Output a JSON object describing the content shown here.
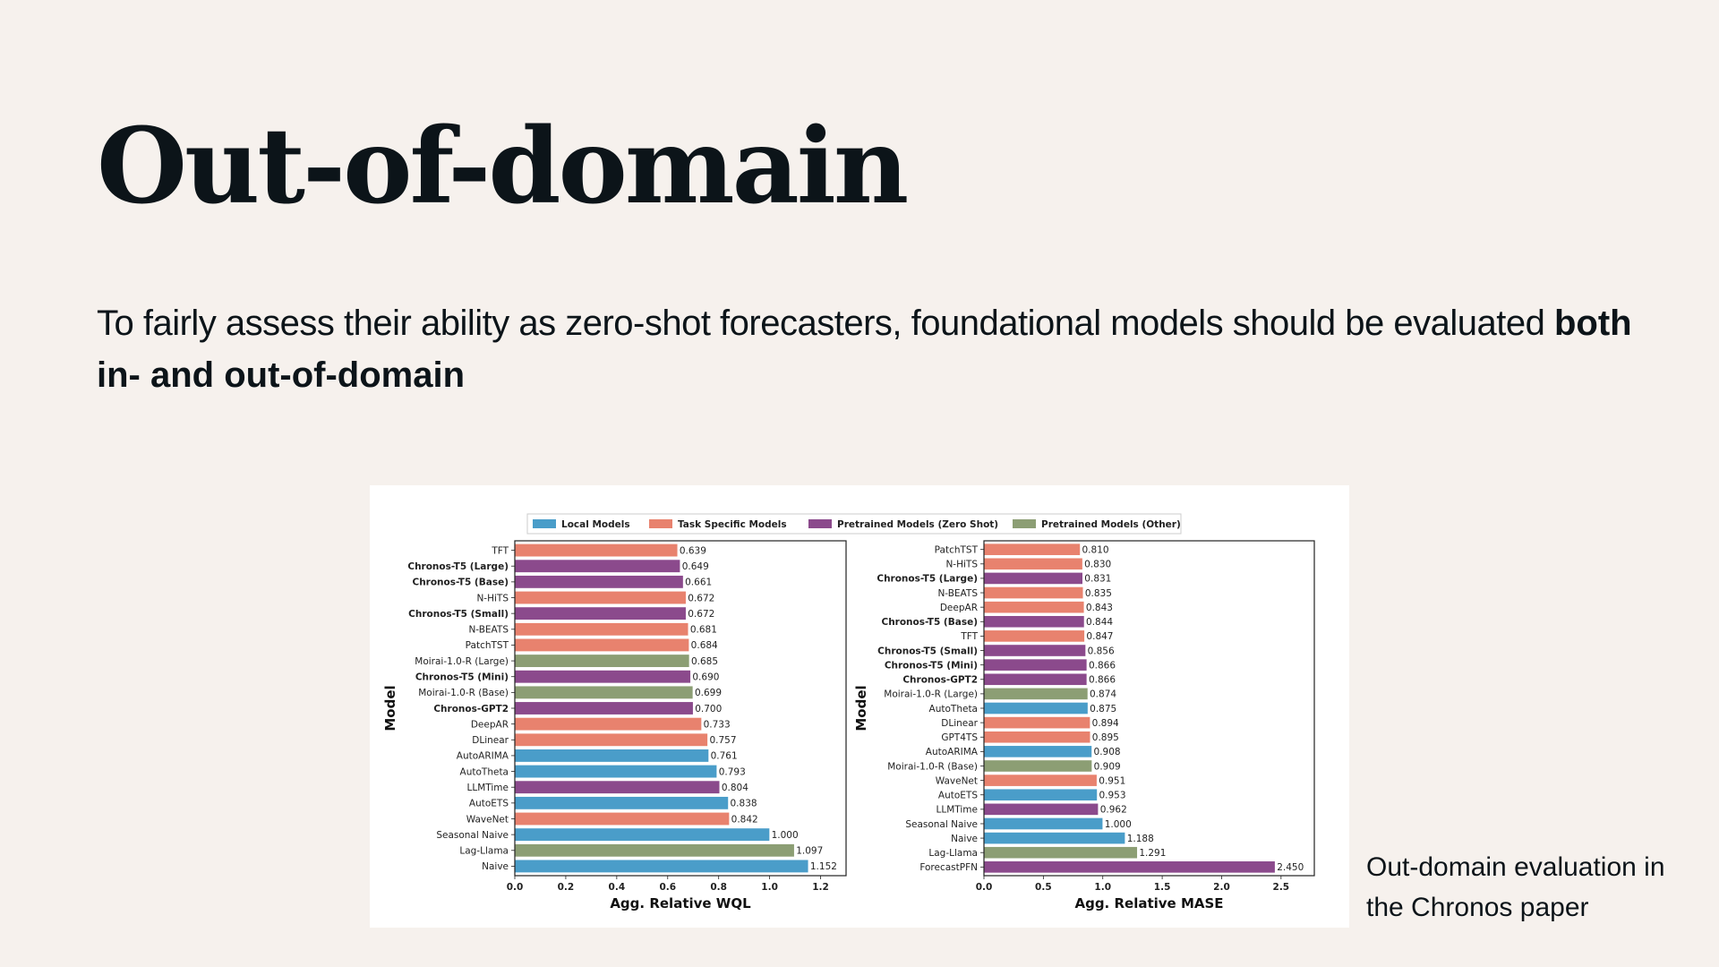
{
  "slide": {
    "title": "Out-of-domain",
    "subtitle_regular": "To fairly assess their ability as zero-shot forecasters, foundational models should be evaluated ",
    "subtitle_bold": "both in- and out-of-domain",
    "caption": "Out-domain evaluation in the Chronos paper"
  },
  "colors": {
    "local": "#4a9dc9",
    "task": "#e8826e",
    "zeroshot": "#8b4a8c",
    "other": "#8c9e74",
    "background": "#f6f1ed"
  },
  "legend": [
    {
      "key": "local",
      "label": "Local Models"
    },
    {
      "key": "task",
      "label": "Task Specific Models"
    },
    {
      "key": "zeroshot",
      "label": "Pretrained Models (Zero Shot)"
    },
    {
      "key": "other",
      "label": "Pretrained Models (Other)"
    }
  ],
  "chart_data": [
    {
      "type": "bar",
      "orientation": "horizontal",
      "xlabel": "Agg. Relative WQL",
      "ylabel": "Model",
      "xlim": [
        0,
        1.3
      ],
      "xticks": [
        0.0,
        0.2,
        0.4,
        0.6,
        0.8,
        1.0,
        1.2
      ],
      "bars": [
        {
          "model": "TFT",
          "value": 0.639,
          "group": "task",
          "bold": false
        },
        {
          "model": "Chronos-T5 (Large)",
          "value": 0.649,
          "group": "zeroshot",
          "bold": true
        },
        {
          "model": "Chronos-T5 (Base)",
          "value": 0.661,
          "group": "zeroshot",
          "bold": true
        },
        {
          "model": "N-HiTS",
          "value": 0.672,
          "group": "task",
          "bold": false
        },
        {
          "model": "Chronos-T5 (Small)",
          "value": 0.672,
          "group": "zeroshot",
          "bold": true
        },
        {
          "model": "N-BEATS",
          "value": 0.681,
          "group": "task",
          "bold": false
        },
        {
          "model": "PatchTST",
          "value": 0.684,
          "group": "task",
          "bold": false
        },
        {
          "model": "Moirai-1.0-R (Large)",
          "value": 0.685,
          "group": "other",
          "bold": false
        },
        {
          "model": "Chronos-T5 (Mini)",
          "value": 0.69,
          "group": "zeroshot",
          "bold": true
        },
        {
          "model": "Moirai-1.0-R (Base)",
          "value": 0.699,
          "group": "other",
          "bold": false
        },
        {
          "model": "Chronos-GPT2",
          "value": 0.7,
          "group": "zeroshot",
          "bold": true
        },
        {
          "model": "DeepAR",
          "value": 0.733,
          "group": "task",
          "bold": false
        },
        {
          "model": "DLinear",
          "value": 0.757,
          "group": "task",
          "bold": false
        },
        {
          "model": "AutoARIMA",
          "value": 0.761,
          "group": "local",
          "bold": false
        },
        {
          "model": "AutoTheta",
          "value": 0.793,
          "group": "local",
          "bold": false
        },
        {
          "model": "LLMTime",
          "value": 0.804,
          "group": "zeroshot",
          "bold": false
        },
        {
          "model": "AutoETS",
          "value": 0.838,
          "group": "local",
          "bold": false
        },
        {
          "model": "WaveNet",
          "value": 0.842,
          "group": "task",
          "bold": false
        },
        {
          "model": "Seasonal Naive",
          "value": 1.0,
          "group": "local",
          "bold": false
        },
        {
          "model": "Lag-Llama",
          "value": 1.097,
          "group": "other",
          "bold": false
        },
        {
          "model": "Naive",
          "value": 1.152,
          "group": "local",
          "bold": false
        }
      ]
    },
    {
      "type": "bar",
      "orientation": "horizontal",
      "xlabel": "Agg. Relative MASE",
      "ylabel": "Model",
      "xlim": [
        0,
        2.78
      ],
      "xticks": [
        0.0,
        0.5,
        1.0,
        1.5,
        2.0,
        2.5
      ],
      "bars": [
        {
          "model": "PatchTST",
          "value": 0.81,
          "group": "task",
          "bold": false
        },
        {
          "model": "N-HiTS",
          "value": 0.83,
          "group": "task",
          "bold": false
        },
        {
          "model": "Chronos-T5 (Large)",
          "value": 0.831,
          "group": "zeroshot",
          "bold": true
        },
        {
          "model": "N-BEATS",
          "value": 0.835,
          "group": "task",
          "bold": false
        },
        {
          "model": "DeepAR",
          "value": 0.843,
          "group": "task",
          "bold": false
        },
        {
          "model": "Chronos-T5 (Base)",
          "value": 0.844,
          "group": "zeroshot",
          "bold": true
        },
        {
          "model": "TFT",
          "value": 0.847,
          "group": "task",
          "bold": false
        },
        {
          "model": "Chronos-T5 (Small)",
          "value": 0.856,
          "group": "zeroshot",
          "bold": true
        },
        {
          "model": "Chronos-T5 (Mini)",
          "value": 0.866,
          "group": "zeroshot",
          "bold": true
        },
        {
          "model": "Chronos-GPT2",
          "value": 0.866,
          "group": "zeroshot",
          "bold": true
        },
        {
          "model": "Moirai-1.0-R (Large)",
          "value": 0.874,
          "group": "other",
          "bold": false
        },
        {
          "model": "AutoTheta",
          "value": 0.875,
          "group": "local",
          "bold": false
        },
        {
          "model": "DLinear",
          "value": 0.894,
          "group": "task",
          "bold": false
        },
        {
          "model": "GPT4TS",
          "value": 0.895,
          "group": "task",
          "bold": false
        },
        {
          "model": "AutoARIMA",
          "value": 0.908,
          "group": "local",
          "bold": false
        },
        {
          "model": "Moirai-1.0-R (Base)",
          "value": 0.909,
          "group": "other",
          "bold": false
        },
        {
          "model": "WaveNet",
          "value": 0.951,
          "group": "task",
          "bold": false
        },
        {
          "model": "AutoETS",
          "value": 0.953,
          "group": "local",
          "bold": false
        },
        {
          "model": "LLMTime",
          "value": 0.962,
          "group": "zeroshot",
          "bold": false
        },
        {
          "model": "Seasonal Naive",
          "value": 1.0,
          "group": "local",
          "bold": false
        },
        {
          "model": "Naive",
          "value": 1.188,
          "group": "local",
          "bold": false
        },
        {
          "model": "Lag-Llama",
          "value": 1.291,
          "group": "other",
          "bold": false
        },
        {
          "model": "ForecastPFN",
          "value": 2.45,
          "group": "zeroshot",
          "bold": false
        }
      ]
    }
  ]
}
